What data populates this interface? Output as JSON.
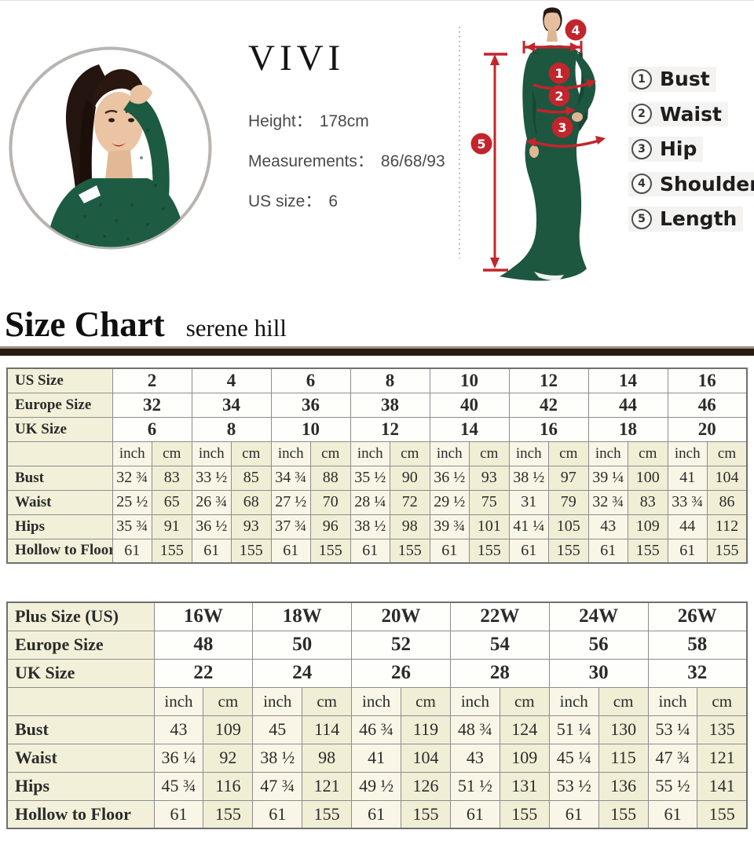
{
  "appearance": {
    "accent_red": "#c2252b",
    "table_cream": "#f3f0da",
    "dress_green": "#1d5740",
    "rule_dark": "#271a10"
  },
  "model_card": {
    "brand": "VIVI",
    "lines": [
      {
        "label": "Height：",
        "value": "178cm"
      },
      {
        "label": "Measurements：",
        "value": "86/68/93"
      },
      {
        "label": "US size：",
        "value": "6"
      }
    ]
  },
  "figure": {
    "callouts": [
      "1",
      "2",
      "3",
      "4",
      "5"
    ]
  },
  "legend": {
    "items": [
      {
        "num": "1",
        "label": "Bust"
      },
      {
        "num": "2",
        "label": "Waist"
      },
      {
        "num": "3",
        "label": "Hip"
      },
      {
        "num": "4",
        "label": "Shoulder"
      },
      {
        "num": "5",
        "label": "Length"
      }
    ]
  },
  "heading": {
    "title": "Size Chart",
    "subtitle": "serene hill"
  },
  "standard_table": {
    "size_rows": [
      {
        "label": "US Size",
        "values": [
          "2",
          "4",
          "6",
          "8",
          "10",
          "12",
          "14",
          "16"
        ]
      },
      {
        "label": "Europe Size",
        "values": [
          "32",
          "34",
          "36",
          "38",
          "40",
          "42",
          "44",
          "46"
        ]
      },
      {
        "label": "UK Size",
        "values": [
          "6",
          "8",
          "10",
          "12",
          "14",
          "16",
          "18",
          "20"
        ]
      }
    ],
    "units": {
      "inch": "inch",
      "cm": "cm"
    },
    "measure_rows": [
      {
        "label": "Bust",
        "inch": [
          "32 ¾",
          "33 ½",
          "34 ¾",
          "35 ½",
          "36 ½",
          "38 ½",
          "39 ¼",
          "41"
        ],
        "cm": [
          "83",
          "85",
          "88",
          "90",
          "93",
          "97",
          "100",
          "104"
        ]
      },
      {
        "label": "Waist",
        "inch": [
          "25 ½",
          "26 ¾",
          "27 ½",
          "28 ¼",
          "29 ½",
          "31",
          "32 ¾",
          "33 ¾"
        ],
        "cm": [
          "65",
          "68",
          "70",
          "72",
          "75",
          "79",
          "83",
          "86"
        ]
      },
      {
        "label": "Hips",
        "inch": [
          "35 ¾",
          "36 ½",
          "37 ¾",
          "38 ½",
          "39 ¾",
          "41 ¼",
          "43",
          "44"
        ],
        "cm": [
          "91",
          "93",
          "96",
          "98",
          "101",
          "105",
          "109",
          "112"
        ]
      },
      {
        "label": "Hollow to Floor",
        "inch": [
          "61",
          "61",
          "61",
          "61",
          "61",
          "61",
          "61",
          "61"
        ],
        "cm": [
          "155",
          "155",
          "155",
          "155",
          "155",
          "155",
          "155",
          "155"
        ]
      }
    ]
  },
  "plus_table": {
    "size_rows": [
      {
        "label": "Plus Size (US)",
        "values": [
          "16W",
          "18W",
          "20W",
          "22W",
          "24W",
          "26W"
        ]
      },
      {
        "label": "Europe Size",
        "values": [
          "48",
          "50",
          "52",
          "54",
          "56",
          "58"
        ]
      },
      {
        "label": "UK Size",
        "values": [
          "22",
          "24",
          "26",
          "28",
          "30",
          "32"
        ]
      }
    ],
    "units": {
      "inch": "inch",
      "cm": "cm"
    },
    "measure_rows": [
      {
        "label": "Bust",
        "inch": [
          "43",
          "45",
          "46 ¾",
          "48 ¾",
          "51 ¼",
          "53 ¼"
        ],
        "cm": [
          "109",
          "114",
          "119",
          "124",
          "130",
          "135"
        ]
      },
      {
        "label": "Waist",
        "inch": [
          "36 ¼",
          "38 ½",
          "41",
          "43",
          "45 ¼",
          "47 ¾"
        ],
        "cm": [
          "92",
          "98",
          "104",
          "109",
          "115",
          "121"
        ]
      },
      {
        "label": "Hips",
        "inch": [
          "45 ¾",
          "47 ¾",
          "49 ½",
          "51 ½",
          "53 ½",
          "55 ½"
        ],
        "cm": [
          "116",
          "121",
          "126",
          "131",
          "136",
          "141"
        ]
      },
      {
        "label": "Hollow to Floor",
        "inch": [
          "61",
          "61",
          "61",
          "61",
          "61",
          "61"
        ],
        "cm": [
          "155",
          "155",
          "155",
          "155",
          "155",
          "155"
        ]
      }
    ]
  }
}
